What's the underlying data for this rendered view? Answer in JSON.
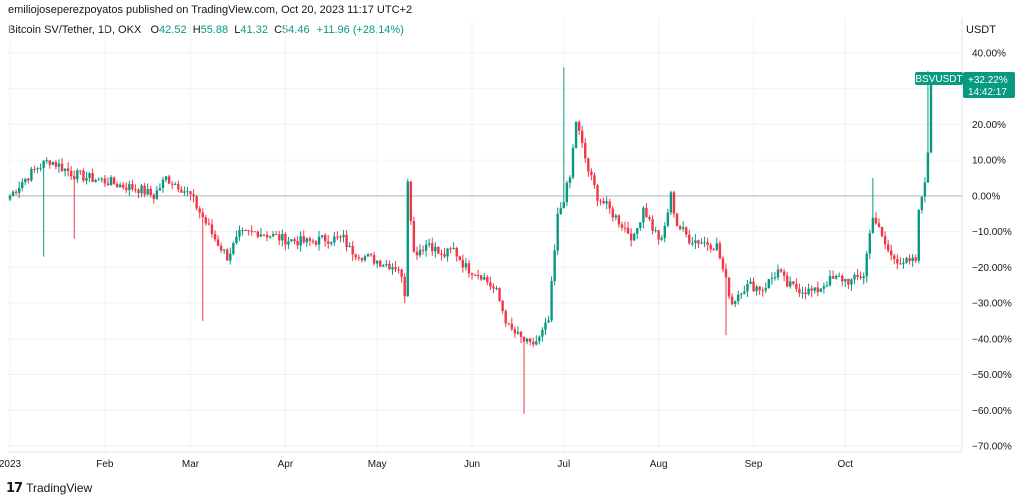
{
  "header": {
    "published": "emiliojoseperezpoyatos published on TradingView.com, Oct 20, 2023 11:17 UTC+2"
  },
  "legend": {
    "symbol": "Bitcoin SV/Tether, 1D, OKX",
    "open_label": "O",
    "open": "42.52",
    "high_label": "H",
    "high": "55.88",
    "low_label": "L",
    "low": "41.32",
    "close_label": "C",
    "close": "54.46",
    "change": "+11.96 (+28.14%)"
  },
  "price_axis": {
    "unit": "USDT"
  },
  "badge": {
    "symbol": "BSVUSDT",
    "value": "+32.22%",
    "countdown": "14:42:17"
  },
  "footer": {
    "logo_text": "𝟭𝟳",
    "brand": "TradingView"
  },
  "colors": {
    "up": "#089981",
    "down": "#F23645",
    "grid": "#F0F3FA",
    "baseline": "#B2B5BE"
  },
  "chart_data": {
    "type": "candlestick",
    "yscale": "percent",
    "ylim": [
      -72,
      42
    ],
    "yticks": [
      40,
      30,
      20,
      10,
      0,
      -10,
      -20,
      -30,
      -40,
      -50,
      -60,
      -70
    ],
    "ytick_labels": [
      "40.00%",
      "30.00%",
      "20.00%",
      "10.00%",
      "0.00%",
      "−10.00%",
      "−20.00%",
      "−30.00%",
      "−40.00%",
      "−50.00%",
      "−60.00%",
      "−70.00%"
    ],
    "xlabels": [
      {
        "label": "2023",
        "day": 1
      },
      {
        "label": "Feb",
        "day": 32
      },
      {
        "label": "Mar",
        "day": 60
      },
      {
        "label": "Apr",
        "day": 91
      },
      {
        "label": "May",
        "day": 121
      },
      {
        "label": "Jun",
        "day": 152
      },
      {
        "label": "Jul",
        "day": 182
      },
      {
        "label": "Aug",
        "day": 213
      },
      {
        "label": "Sep",
        "day": 244
      },
      {
        "label": "Oct",
        "day": 274
      }
    ],
    "last_value": 32.22,
    "ohlc_anchors": [
      [
        1,
        0
      ],
      [
        5,
        4
      ],
      [
        10,
        8
      ],
      [
        14,
        10
      ],
      [
        18,
        8
      ],
      [
        22,
        6
      ],
      [
        27,
        5
      ],
      [
        33,
        4
      ],
      [
        37,
        3
      ],
      [
        43,
        2
      ],
      [
        48,
        0
      ],
      [
        52,
        5
      ],
      [
        56,
        3
      ],
      [
        60,
        0
      ],
      [
        64,
        -6
      ],
      [
        68,
        -12
      ],
      [
        72,
        -17
      ],
      [
        76,
        -11
      ],
      [
        82,
        -10
      ],
      [
        90,
        -12
      ],
      [
        98,
        -13
      ],
      [
        104,
        -12
      ],
      [
        110,
        -12
      ],
      [
        112,
        -15
      ],
      [
        117,
        -17
      ],
      [
        124,
        -19
      ],
      [
        128,
        -20
      ],
      [
        130,
        -27
      ],
      [
        131,
        5
      ],
      [
        133,
        -16
      ],
      [
        138,
        -13
      ],
      [
        142,
        -17
      ],
      [
        146,
        -15
      ],
      [
        150,
        -20
      ],
      [
        155,
        -22
      ],
      [
        160,
        -27
      ],
      [
        164,
        -37
      ],
      [
        168,
        -40
      ],
      [
        171,
        -42
      ],
      [
        174,
        -40
      ],
      [
        177,
        -35
      ],
      [
        180,
        -6
      ],
      [
        184,
        5
      ],
      [
        186,
        21
      ],
      [
        188,
        14
      ],
      [
        190,
        7
      ],
      [
        193,
        0
      ],
      [
        197,
        -4
      ],
      [
        201,
        -8
      ],
      [
        205,
        -12
      ],
      [
        208,
        -3
      ],
      [
        211,
        -9
      ],
      [
        214,
        -13
      ],
      [
        217,
        0
      ],
      [
        219,
        -8
      ],
      [
        223,
        -12
      ],
      [
        228,
        -13
      ],
      [
        232,
        -14
      ],
      [
        235,
        -24
      ],
      [
        237,
        -30
      ],
      [
        240,
        -26
      ],
      [
        243,
        -25
      ],
      [
        247,
        -26
      ],
      [
        252,
        -21
      ],
      [
        255,
        -25
      ],
      [
        259,
        -26
      ],
      [
        264,
        -27
      ],
      [
        268,
        -24
      ],
      [
        272,
        -23
      ],
      [
        276,
        -24
      ],
      [
        280,
        -22
      ],
      [
        283,
        -5
      ],
      [
        286,
        -12
      ],
      [
        289,
        -17
      ],
      [
        292,
        -18
      ],
      [
        295,
        -19
      ],
      [
        297,
        -18
      ],
      [
        298,
        -5
      ],
      [
        300,
        5
      ],
      [
        301,
        11
      ],
      [
        302,
        33
      ]
    ]
  }
}
